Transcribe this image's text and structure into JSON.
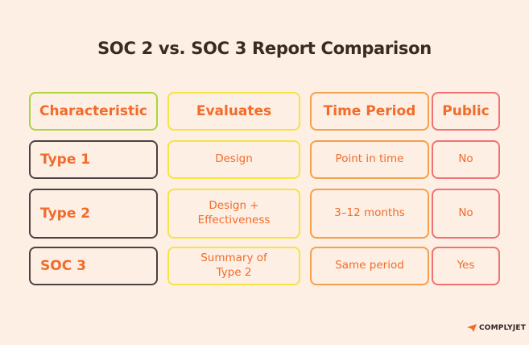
{
  "title": "SOC 2 vs. SOC 3 Report Comparison",
  "table": {
    "header": [
      "Characteristic",
      "Evaluates",
      "Time Period",
      "Public"
    ],
    "rows": [
      [
        "Type 1",
        "Design",
        "Point in time",
        "No"
      ],
      [
        "Type 2",
        "Design + Effectiveness",
        "3–12 months",
        "No"
      ],
      [
        "SOC 3",
        "Summary of Type 2",
        "Same period",
        "Yes"
      ]
    ]
  },
  "logo": "COMPLYJET"
}
